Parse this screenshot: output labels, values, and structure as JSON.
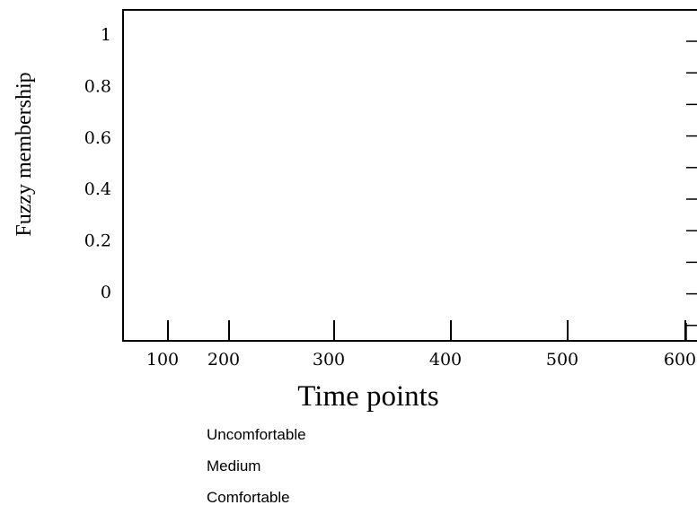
{
  "chart_data": {
    "type": "line",
    "title": "",
    "xlabel": "Time points",
    "ylabel": "Fuzzy membership",
    "x_ticks": [
      100,
      200,
      300,
      400,
      500,
      600
    ],
    "y_ticks": [
      0,
      0.2,
      0.4,
      0.6,
      0.8,
      1
    ],
    "y_tick_labels": [
      "0",
      "0.2",
      "0.4",
      "0.6",
      "0.8",
      "1"
    ],
    "xlim": [
      60,
      610
    ],
    "ylim": [
      -0.1,
      1.05
    ],
    "grid": false,
    "legend_placement": "below",
    "series": [
      {
        "name": "Uncomfortable",
        "x": [],
        "y": []
      },
      {
        "name": "Medium",
        "x": [],
        "y": []
      },
      {
        "name": "Comfortable",
        "x": [],
        "y": []
      }
    ]
  }
}
